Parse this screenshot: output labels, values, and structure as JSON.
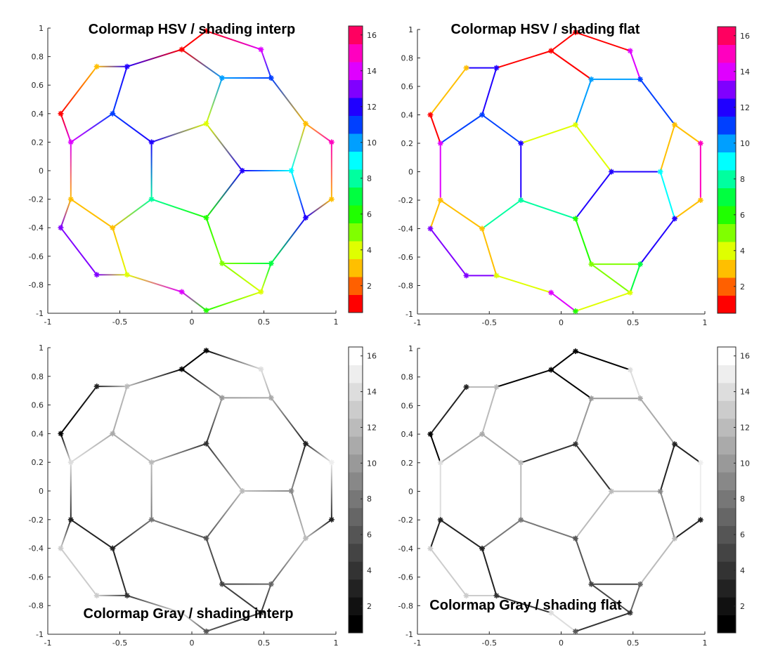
{
  "chart_data": [
    {
      "type": "graph",
      "title": "Colormap HSV / shading interp",
      "colormap": "hsv",
      "colormap_levels": 16,
      "shading": "interp",
      "xlim": [
        -1,
        1
      ],
      "ylim": [
        -1,
        1
      ],
      "xticks": [
        "-1",
        "-0.5",
        "0",
        "0.5",
        "1"
      ],
      "yticks": [
        "-1",
        "-0.8",
        "-0.6",
        "-0.4",
        "-0.2",
        "0",
        "0.2",
        "0.4",
        "0.6",
        "0.8",
        "1"
      ],
      "clim": [
        1,
        16
      ],
      "colorbar_ticks": [
        "2",
        "4",
        "6",
        "8",
        "10",
        "12",
        "14",
        "16"
      ],
      "title_position": "top"
    },
    {
      "type": "graph",
      "title": "Colormap HSV / shading flat",
      "colormap": "hsv",
      "colormap_levels": 16,
      "shading": "flat",
      "xlim": [
        -1,
        1
      ],
      "ylim": [
        -1,
        1
      ],
      "xticks": [
        "-1",
        "-0.5",
        "0",
        "0.5",
        "1"
      ],
      "yticks": [
        "-1",
        "-0.8",
        "-0.6",
        "-0.4",
        "-0.2",
        "0",
        "0.2",
        "0.4",
        "0.6",
        "0.8",
        "1"
      ],
      "clim": [
        1,
        16
      ],
      "colorbar_ticks": [
        "2",
        "4",
        "6",
        "8",
        "10",
        "12",
        "14",
        "16"
      ],
      "title_position": "top"
    },
    {
      "type": "graph",
      "title": "Colormap Gray / shading interp",
      "colormap": "gray",
      "colormap_levels": 16,
      "shading": "interp",
      "xlim": [
        -1,
        1
      ],
      "ylim": [
        -1,
        1
      ],
      "xticks": [
        "-1",
        "-0.5",
        "0",
        "0.5",
        "1"
      ],
      "yticks": [
        "-1",
        "-0.8",
        "-0.6",
        "-0.4",
        "-0.2",
        "0",
        "0.2",
        "0.4",
        "0.6",
        "0.8",
        "1"
      ],
      "clim": [
        1,
        16
      ],
      "colorbar_ticks": [
        "2",
        "4",
        "6",
        "8",
        "10",
        "12",
        "14",
        "16"
      ],
      "title_position": "bottom"
    },
    {
      "type": "graph",
      "title": "Colormap Gray / shading flat",
      "colormap": "gray",
      "colormap_levels": 16,
      "shading": "flat",
      "xlim": [
        -1,
        1
      ],
      "ylim": [
        -1,
        1
      ],
      "xticks": [
        "-1",
        "-0.5",
        "0",
        "0.5",
        "1"
      ],
      "yticks": [
        "-1",
        "-0.8",
        "-0.6",
        "-0.4",
        "-0.2",
        "0",
        "0.2",
        "0.4",
        "0.6",
        "0.8",
        "1"
      ],
      "clim": [
        1,
        16
      ],
      "colorbar_ticks": [
        "2",
        "4",
        "6",
        "8",
        "10",
        "12",
        "14",
        "16"
      ],
      "title_position": "bottom"
    }
  ],
  "graph": {
    "nodes": [
      [
        0.1,
        0.98,
        1
      ],
      [
        0.48,
        0.85,
        14
      ],
      [
        -0.07,
        0.85,
        1
      ],
      [
        -0.45,
        0.73,
        12
      ],
      [
        -0.66,
        0.73,
        3
      ],
      [
        0.21,
        0.65,
        10
      ],
      [
        0.55,
        0.65,
        11
      ],
      [
        -0.91,
        0.4,
        1
      ],
      [
        -0.55,
        0.4,
        11
      ],
      [
        0.1,
        0.33,
        4
      ],
      [
        0.79,
        0.33,
        3
      ],
      [
        -0.84,
        0.2,
        14
      ],
      [
        -0.28,
        0.2,
        12
      ],
      [
        0.97,
        0.2,
        15
      ],
      [
        0.35,
        0.0,
        12
      ],
      [
        0.69,
        0.0,
        9
      ],
      [
        -0.84,
        -0.2,
        3
      ],
      [
        -0.28,
        -0.2,
        8
      ],
      [
        0.97,
        -0.2,
        3
      ],
      [
        -0.91,
        -0.4,
        13
      ],
      [
        -0.55,
        -0.4,
        3
      ],
      [
        0.1,
        -0.33,
        6
      ],
      [
        0.79,
        -0.33,
        12
      ],
      [
        -0.66,
        -0.73,
        13
      ],
      [
        -0.45,
        -0.73,
        4
      ],
      [
        0.21,
        -0.65,
        5
      ],
      [
        0.55,
        -0.65,
        7
      ],
      [
        -0.07,
        -0.85,
        14
      ],
      [
        0.48,
        -0.85,
        4
      ],
      [
        0.1,
        -0.98,
        6
      ]
    ],
    "edges": [
      [
        0,
        1
      ],
      [
        0,
        2
      ],
      [
        1,
        6
      ],
      [
        2,
        3
      ],
      [
        2,
        5
      ],
      [
        3,
        4
      ],
      [
        3,
        8
      ],
      [
        4,
        7
      ],
      [
        5,
        6
      ],
      [
        5,
        9
      ],
      [
        6,
        10
      ],
      [
        7,
        11
      ],
      [
        8,
        11
      ],
      [
        8,
        12
      ],
      [
        9,
        12
      ],
      [
        9,
        14
      ],
      [
        10,
        13
      ],
      [
        10,
        15
      ],
      [
        11,
        16
      ],
      [
        12,
        17
      ],
      [
        13,
        18
      ],
      [
        14,
        15
      ],
      [
        14,
        21
      ],
      [
        15,
        22
      ],
      [
        16,
        19
      ],
      [
        16,
        20
      ],
      [
        17,
        20
      ],
      [
        17,
        21
      ],
      [
        18,
        22
      ],
      [
        19,
        23
      ],
      [
        20,
        24
      ],
      [
        21,
        25
      ],
      [
        22,
        26
      ],
      [
        23,
        24
      ],
      [
        24,
        27
      ],
      [
        25,
        26
      ],
      [
        25,
        28
      ],
      [
        26,
        28
      ],
      [
        27,
        29
      ],
      [
        28,
        29
      ]
    ]
  }
}
